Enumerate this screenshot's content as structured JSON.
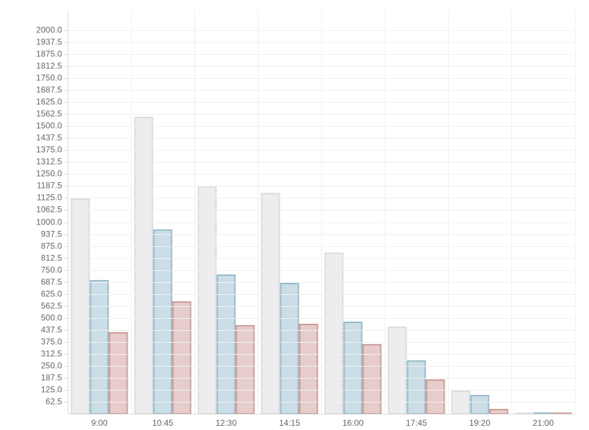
{
  "chart_data": {
    "type": "bar",
    "categories": [
      "9:00",
      "10:45",
      "12:30",
      "14:15",
      "16:00",
      "17:45",
      "19:20",
      "21:00"
    ],
    "series": [
      {
        "color": "#dcdcdc",
        "values": [
          1119,
          1545,
          1185,
          1149,
          837,
          451,
          117,
          3
        ]
      },
      {
        "color": "#97bbcd",
        "values": [
          694,
          958,
          723,
          679,
          477,
          275,
          95,
          4
        ]
      },
      {
        "color": "#cd9c97",
        "values": [
          422,
          583,
          459,
          466,
          360,
          176,
          22,
          3
        ]
      }
    ],
    "ylim": [
      0,
      2100
    ],
    "yticks": [
      62.5,
      {
        "value": 125,
        "label": "125.0"
      },
      187.5,
      {
        "value": 250,
        "label": "250.0"
      },
      312.5,
      {
        "value": 375,
        "label": "375.0"
      },
      437.5,
      {
        "value": 500,
        "label": "500.0"
      },
      562.5,
      {
        "value": 625,
        "label": "625.0"
      },
      687.5,
      {
        "value": 750,
        "label": "750.0"
      },
      812.5,
      {
        "value": 875,
        "label": "875.0"
      },
      937.5,
      {
        "value": 1000,
        "label": "1000.0"
      },
      1062.5,
      {
        "value": 1125,
        "label": "1125.0"
      },
      1187.5,
      {
        "value": 1250,
        "label": "1250.0"
      },
      1312.5,
      {
        "value": 1375,
        "label": "1375.0"
      },
      1437.5,
      {
        "value": 1500,
        "label": "1500.0"
      },
      1562.5,
      {
        "value": 1625,
        "label": "1625.0"
      },
      1687.5,
      {
        "value": 1750,
        "label": "1750.0"
      },
      1812.5,
      {
        "value": 1875,
        "label": "1875.0"
      },
      1937.5,
      {
        "value": 2000,
        "label": "2000.0"
      }
    ],
    "grid": true
  }
}
